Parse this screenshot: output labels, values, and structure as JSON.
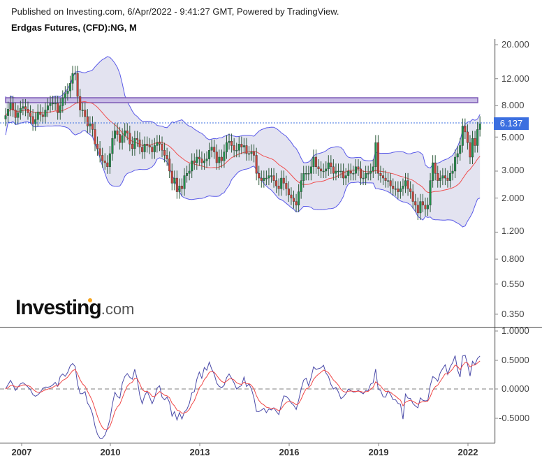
{
  "header": {
    "published": "Published on Investing.com, 6/Apr/2022 - 9:41:27 GMT, Powered by TradingView.",
    "instrument": "Erdgas Futures, (CFD):NG, M"
  },
  "logo": {
    "brand": "Investing",
    "suffix": ".com"
  },
  "colors": {
    "bull": "#1f8f4a",
    "bear": "#c9453a",
    "band": "#5a5ae8",
    "band_fill": "#e3e3f0",
    "ma": "#f05050",
    "resistance_fill": "#c9bde6",
    "resistance_border": "#7d5ab5",
    "last_price": "#3b6fe0",
    "osc_main": "#4a4aa8",
    "osc_signal": "#f04848",
    "zero_line": "#aaaaaa"
  },
  "price_axis": {
    "ticks": [
      "20.000",
      "12.000",
      "8.000",
      "5.000",
      "3.000",
      "2.000",
      "1.200",
      "0.800",
      "0.550",
      "0.350"
    ],
    "last_price_label": "6.137"
  },
  "oscillator_axis": {
    "ticks": [
      "1.0000",
      "0.5000",
      "0.0000",
      "-0.5000"
    ]
  },
  "time_axis": {
    "ticks": [
      "2007",
      "2010",
      "2013",
      "2016",
      "2019",
      "2022"
    ]
  },
  "chart_data": [
    {
      "type": "candlestick",
      "title": "Erdgas Futures, (CFD):NG, M",
      "scale": "log",
      "ylim": [
        0.33,
        21
      ],
      "yticks": [
        20,
        12,
        8,
        5,
        3,
        2,
        1.2,
        0.8,
        0.55,
        0.35
      ],
      "xticks": [
        "2007",
        "2010",
        "2013",
        "2016",
        "2019",
        "2022"
      ],
      "start": "2006-08",
      "closes": [
        6.9,
        7.6,
        8.3,
        7.5,
        6.7,
        7.2,
        7.7,
        7.9,
        7.6,
        7.2,
        6.8,
        6.1,
        6.5,
        7.3,
        7.0,
        6.8,
        7.5,
        8.0,
        8.3,
        8.3,
        8.3,
        7.2,
        8.0,
        9.0,
        9.6,
        10.0,
        11.2,
        13.0,
        13.0,
        9.2,
        7.5,
        7.5,
        6.8,
        5.9,
        6.1,
        5.6,
        4.5,
        4.2,
        3.8,
        3.5,
        3.4,
        3.2,
        3.9,
        4.9,
        5.5,
        5.2,
        4.6,
        5.1,
        5.5,
        5.3,
        4.5,
        4.2,
        4.9,
        4.8,
        4.3,
        4.0,
        4.5,
        4.4,
        4.3,
        4.0,
        4.4,
        4.6,
        4.5,
        4.1,
        3.8,
        3.6,
        3.0,
        2.5,
        2.7,
        2.2,
        2.4,
        2.3,
        2.8,
        2.9,
        3.0,
        3.5,
        3.4,
        3.7,
        3.6,
        3.4,
        3.5,
        3.6,
        4.1,
        4.3,
        4.0,
        3.4,
        3.7,
        3.5,
        4.0,
        4.6,
        4.7,
        4.4,
        4.1,
        4.1,
        4.5,
        4.3,
        4.4,
        3.9,
        3.9,
        4.0,
        3.8,
        2.9,
        2.7,
        2.6,
        2.7,
        2.7,
        2.8,
        2.8,
        2.6,
        2.4,
        2.3,
        2.7,
        2.5,
        2.3,
        2.1,
        2.0,
        1.9,
        1.8,
        2.2,
        2.6,
        2.9,
        2.9,
        2.9,
        3.2,
        3.7,
        3.2,
        3.1,
        3.0,
        3.0,
        3.1,
        3.4,
        3.2,
        2.9,
        3.0,
        3.0,
        3.0,
        2.7,
        2.8,
        3.0,
        2.9,
        2.9,
        3.2,
        3.1,
        2.7,
        2.7,
        2.9,
        2.9,
        3.0,
        3.2,
        4.6,
        2.9,
        2.8,
        2.7,
        2.6,
        2.6,
        2.4,
        2.3,
        2.3,
        2.2,
        2.3,
        2.4,
        2.6,
        2.3,
        2.2,
        1.9,
        1.8,
        1.6,
        1.9,
        1.8,
        1.7,
        1.8,
        2.6,
        3.4,
        2.9,
        2.6,
        2.7,
        2.8,
        2.7,
        2.6,
        2.9,
        3.0,
        3.7,
        3.9,
        4.4,
        5.9,
        5.4,
        4.6,
        3.7,
        4.9,
        4.4,
        5.6,
        6.1
      ]
    },
    {
      "type": "line",
      "title": "Oscillator",
      "ylim": [
        -0.9,
        1.05
      ],
      "yticks": [
        1.0,
        0.5,
        0.0,
        -0.5
      ],
      "series": [
        {
          "name": "main",
          "color": "#4a4aa8"
        },
        {
          "name": "signal",
          "color": "#f04848"
        }
      ]
    }
  ]
}
